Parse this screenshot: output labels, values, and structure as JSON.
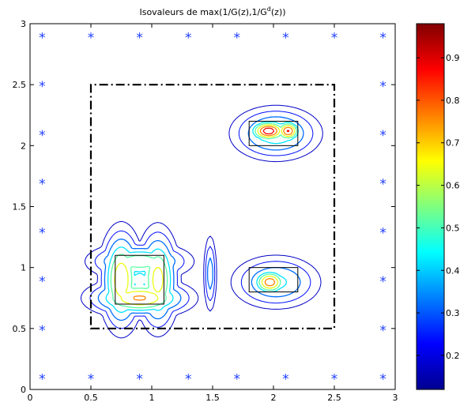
{
  "chart_data": {
    "type": "heatmap",
    "title_main": "Isovaleurs de max(1/G(z),1/G",
    "title_sup": "d",
    "title_end": "(z))",
    "xlim": [
      0,
      3
    ],
    "ylim": [
      0,
      3
    ],
    "xticks": [
      "0",
      "0.5",
      "1",
      "1.5",
      "2",
      "2.5",
      "3"
    ],
    "yticks": [
      "0",
      "0.5",
      "1",
      "1.5",
      "2",
      "2.5",
      "3"
    ],
    "colorbar": {
      "range": [
        0.12,
        0.98
      ],
      "ticks": [
        "0.2",
        "0.3",
        "0.4",
        "0.5",
        "0.6",
        "0.7",
        "0.8",
        "0.9"
      ],
      "tick_values": [
        0.2,
        0.3,
        0.4,
        0.5,
        0.6,
        0.7,
        0.8,
        0.9
      ]
    },
    "sensor_color": "#1f3fff",
    "sensors": [
      [
        0.1,
        2.9
      ],
      [
        0.5,
        2.9
      ],
      [
        0.9,
        2.9
      ],
      [
        1.3,
        2.9
      ],
      [
        1.7,
        2.9
      ],
      [
        2.1,
        2.9
      ],
      [
        2.5,
        2.9
      ],
      [
        2.9,
        2.9
      ],
      [
        0.1,
        2.5
      ],
      [
        2.9,
        2.5
      ],
      [
        0.1,
        2.1
      ],
      [
        2.9,
        2.1
      ],
      [
        0.1,
        1.7
      ],
      [
        2.9,
        1.7
      ],
      [
        0.1,
        1.3
      ],
      [
        2.9,
        1.3
      ],
      [
        0.1,
        0.9
      ],
      [
        2.9,
        0.9
      ],
      [
        0.1,
        0.5
      ],
      [
        2.9,
        0.5
      ],
      [
        0.1,
        0.1
      ],
      [
        0.5,
        0.1
      ],
      [
        0.9,
        0.1
      ],
      [
        1.3,
        0.1
      ],
      [
        1.7,
        0.1
      ],
      [
        2.1,
        0.1
      ],
      [
        2.5,
        0.1
      ],
      [
        2.9,
        0.1
      ]
    ],
    "domain_box": [
      [
        0.5,
        0.5
      ],
      [
        2.5,
        2.5
      ]
    ],
    "objects": [
      {
        "x0": 0.7,
        "x1": 1.1,
        "y0": 0.7,
        "y1": 1.1
      },
      {
        "x0": 1.8,
        "x1": 2.2,
        "y0": 0.8,
        "y1": 1.0
      },
      {
        "x0": 1.8,
        "x1": 2.2,
        "y0": 2.0,
        "y1": 2.2
      }
    ],
    "peaks": [
      {
        "x": 0.75,
        "y": 0.9,
        "sx": 0.09,
        "sy": 0.22,
        "a": 0.75
      },
      {
        "x": 1.05,
        "y": 0.9,
        "sx": 0.09,
        "sy": 0.22,
        "a": 0.7
      },
      {
        "x": 0.9,
        "y": 0.75,
        "sx": 0.22,
        "sy": 0.08,
        "a": 0.78
      },
      {
        "x": 0.9,
        "y": 1.05,
        "sx": 0.22,
        "sy": 0.08,
        "a": 0.6
      },
      {
        "x": 0.9,
        "y": 0.9,
        "sx": 0.12,
        "sy": 0.12,
        "a": 0.45
      },
      {
        "x": 1.97,
        "y": 0.88,
        "sx": 0.08,
        "sy": 0.06,
        "a": 0.85
      },
      {
        "x": 2.02,
        "y": 0.88,
        "sx": 0.2,
        "sy": 0.12,
        "a": 0.45
      },
      {
        "x": 1.96,
        "y": 2.12,
        "sx": 0.09,
        "sy": 0.05,
        "a": 0.98
      },
      {
        "x": 2.12,
        "y": 2.12,
        "sx": 0.06,
        "sy": 0.05,
        "a": 0.9
      },
      {
        "x": 2.02,
        "y": 2.1,
        "sx": 0.2,
        "sy": 0.12,
        "a": 0.5
      },
      {
        "x": 1.48,
        "y": 0.95,
        "sx": 0.03,
        "sy": 0.18,
        "a": 0.38
      }
    ],
    "contour_levels": [
      0.18,
      0.24,
      0.32,
      0.42,
      0.52,
      0.64,
      0.76,
      0.88
    ]
  }
}
